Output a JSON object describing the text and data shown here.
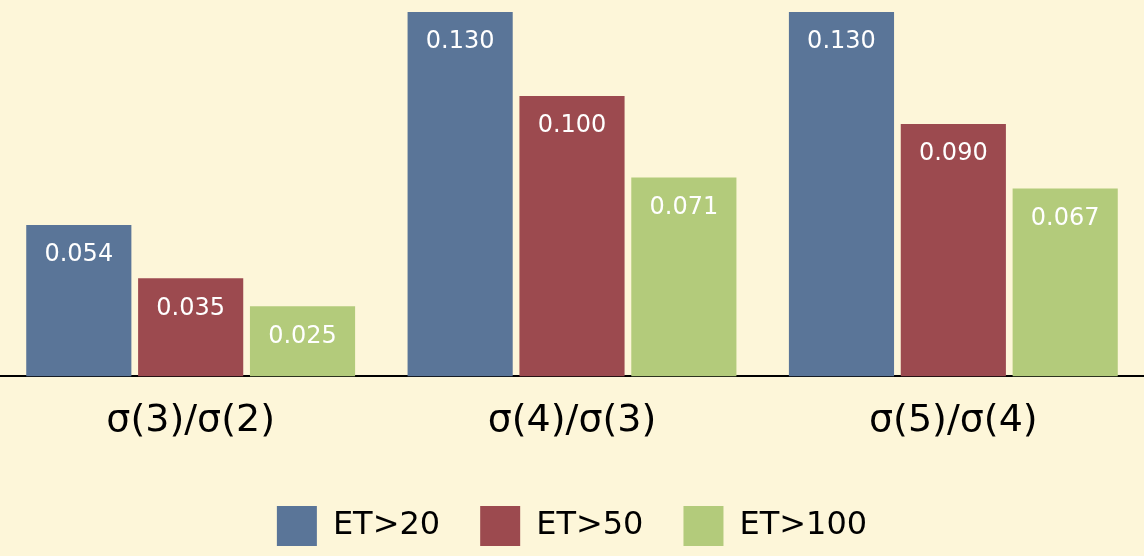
{
  "chart_data": {
    "type": "bar",
    "categories": [
      "σ(3)/σ(2)",
      "σ(4)/σ(3)",
      "σ(5)/σ(4)"
    ],
    "series": [
      {
        "name": "ET>20",
        "color": "#5a7598",
        "values": [
          0.054,
          0.13,
          0.13
        ],
        "value_labels": [
          "0.054",
          "0.130",
          "0.130"
        ]
      },
      {
        "name": "ET>50",
        "color": "#9c4a4f",
        "values": [
          0.035,
          0.1,
          0.09
        ],
        "value_labels": [
          "0.035",
          "0.100",
          "0.090"
        ]
      },
      {
        "name": "ET>100",
        "color": "#b3cb7b",
        "values": [
          0.025,
          0.071,
          0.067
        ],
        "value_labels": [
          "0.025",
          "0.071",
          "0.067"
        ]
      }
    ],
    "grid": false,
    "legend": "bottom"
  }
}
